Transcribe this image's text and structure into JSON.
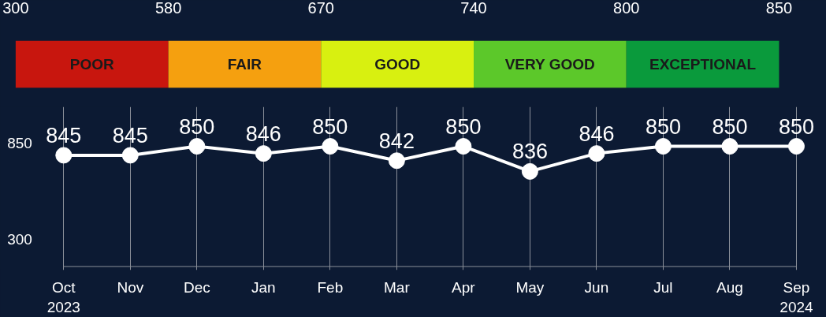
{
  "chart_data": [
    {
      "type": "other",
      "categories": [
        "POOR",
        "FAIR",
        "GOOD",
        "VERY GOOD",
        "EXCEPTIONAL"
      ],
      "colors": [
        "#c8160e",
        "#f5a00f",
        "#d8f010",
        "#5cc82a",
        "#0a9a3c"
      ],
      "annotations": [
        "300",
        "580",
        "670",
        "740",
        "800",
        "850"
      ]
    },
    {
      "type": "line",
      "categories": [
        "Oct\n2023",
        "Nov",
        "Dec",
        "Jan",
        "Feb",
        "Mar",
        "Apr",
        "May",
        "Jun",
        "Jul",
        "Aug",
        "Sep\n2024"
      ],
      "values": [
        845,
        845,
        850,
        846,
        850,
        842,
        850,
        836,
        846,
        850,
        850,
        850
      ],
      "color": "#ffffff",
      "marker": "circle",
      "data_labels": true,
      "grid": "x",
      "ylim": [
        781,
        872
      ],
      "tick_labels": "x",
      "annotations": [
        "850",
        "300"
      ]
    }
  ]
}
